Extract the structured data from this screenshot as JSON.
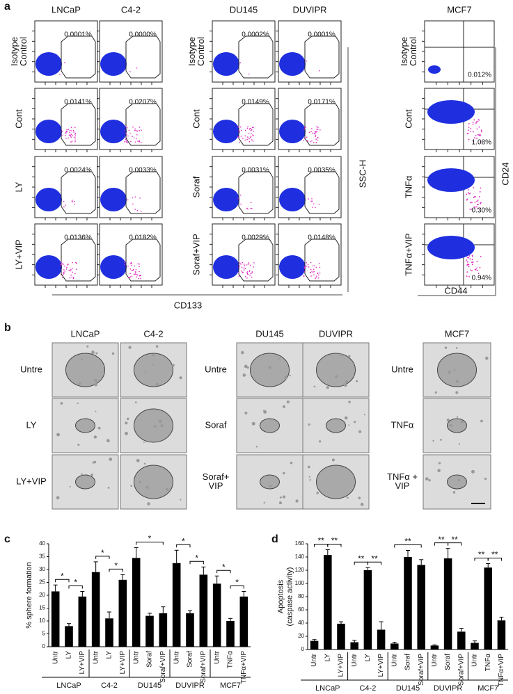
{
  "panel_a": {
    "letter": "a",
    "blocks": [
      {
        "columns": [
          "LNCaP",
          "C4-2"
        ],
        "rows": [
          [
            "Isotype",
            "Control"
          ],
          [
            "Cont"
          ],
          [
            "LY"
          ],
          [
            "LY+VIP"
          ]
        ],
        "percentages": [
          [
            "0.0001%",
            "0.0000%"
          ],
          [
            "0.0141%",
            "0.0207%"
          ],
          [
            "0.0024%",
            "0.0033%"
          ],
          [
            "0.0136%",
            "0.0182%"
          ]
        ]
      },
      {
        "columns": [
          "DU145",
          "DUVIPR"
        ],
        "rows": [
          [
            "Isotype",
            "Control"
          ],
          [
            "Cont"
          ],
          [
            "Soraf"
          ],
          [
            "Soraf+VIP"
          ]
        ],
        "percentages": [
          [
            "0.0002%",
            "0.0001%"
          ],
          [
            "0.0149%",
            "0.0171%"
          ],
          [
            "0.0031%",
            "0.0035%"
          ],
          [
            "0.0029%",
            "0.0148%"
          ]
        ]
      },
      {
        "columns": [
          "MCF7"
        ],
        "rows": [
          [
            "Isotype",
            "Control"
          ],
          [
            "Cont"
          ],
          [
            "TNFα"
          ],
          [
            "TNFα+VIP"
          ]
        ],
        "percentages": [
          [
            "0.012%"
          ],
          [
            "1.08%"
          ],
          [
            "0.30%"
          ],
          [
            "0.94%"
          ]
        ]
      }
    ],
    "x_label": "CD133",
    "y_label": "SSC-H",
    "mcf7_x_label": "CD44",
    "mcf7_y_label": "CD24"
  },
  "panel_b": {
    "letter": "b",
    "blocks": [
      {
        "columns": [
          "LNCaP",
          "C4-2"
        ],
        "rows": [
          [
            "Untre"
          ],
          [
            "LY"
          ],
          [
            "LY+VIP"
          ]
        ]
      },
      {
        "columns": [
          "DU145",
          "DUVIPR"
        ],
        "rows": [
          [
            "Untre"
          ],
          [
            "Soraf"
          ],
          [
            "Soraf+",
            "VIP"
          ]
        ]
      },
      {
        "columns": [
          "MCF7"
        ],
        "rows": [
          [
            "Untre"
          ],
          [
            "TNFα"
          ],
          [
            "TNFα +",
            "VIP"
          ]
        ]
      }
    ]
  },
  "chart_data": [
    {
      "type": "bar",
      "letter": "c",
      "ylabel": [
        "% sphere formation"
      ],
      "categories": [
        "Untr",
        "LY",
        "LY+VIP",
        "Untr",
        "LY",
        "LY+VIP",
        "Untr",
        "Soraf",
        "Soraf+VIP",
        "Untr",
        "Soraf",
        "Soraf+VIP",
        "Untr",
        "TNFα",
        "TNFα+VIP"
      ],
      "groups": [
        "LNCaP",
        "C4-2",
        "DU145",
        "DUVIPR",
        "MCF7"
      ],
      "values": [
        21.5,
        8,
        19.5,
        29,
        11,
        26,
        34.5,
        12,
        13,
        32.5,
        13,
        28,
        24.5,
        10,
        19.5
      ],
      "errors": [
        2.5,
        1,
        2,
        4,
        2.5,
        2,
        4,
        1,
        2.5,
        5,
        1,
        3,
        3,
        1,
        2
      ],
      "color": "#000000",
      "ylim": [
        0,
        40
      ],
      "yticks": [
        0,
        5,
        10,
        15,
        20,
        25,
        30,
        35,
        40
      ],
      "annotations": [
        "*",
        "*",
        "*",
        "*",
        "*",
        "*",
        "*",
        "*",
        "*"
      ]
    },
    {
      "type": "bar",
      "letter": "d",
      "ylabel": [
        "Apoptosis",
        "(caspase activity)"
      ],
      "categories": [
        "Untr",
        "LY",
        "LY+VIP",
        "Untr",
        "LY",
        "LY+VIP",
        "Untr",
        "Soraf",
        "Soraf+VIP",
        "Untr",
        "Soraf",
        "Soraf+VIP",
        "Untr",
        "TNFα",
        "TNFα+VIP"
      ],
      "groups": [
        "LNCaP",
        "C4-2",
        "DU145",
        "DUVIPR",
        "MCF7"
      ],
      "values": [
        13,
        143,
        39,
        11,
        120,
        30,
        9,
        140,
        128,
        6,
        138,
        27,
        10,
        124,
        44
      ],
      "errors": [
        2,
        8,
        3,
        3,
        4,
        12,
        2,
        10,
        8,
        1,
        15,
        5,
        3,
        6,
        5
      ],
      "color": "#000000",
      "ylim": [
        0,
        160
      ],
      "yticks": [
        0,
        20,
        40,
        60,
        80,
        100,
        120,
        140,
        160
      ],
      "annotations": [
        "**",
        "**",
        "**",
        "**",
        "**",
        "**",
        "**",
        "**",
        "**"
      ]
    }
  ]
}
